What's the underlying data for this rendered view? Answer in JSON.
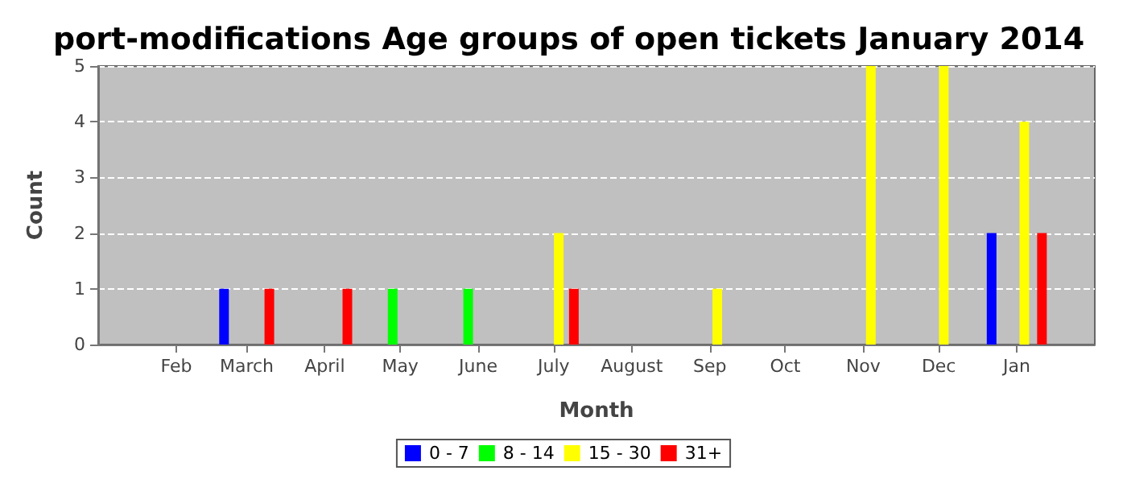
{
  "chart_data": {
    "type": "bar",
    "title": "port-modifications Age groups of open tickets January 2014",
    "xlabel": "Month",
    "ylabel": "Count",
    "xlim": [
      "2013-01-01",
      "2014-02-01"
    ],
    "xticks": [
      {
        "value": "2013-02-01",
        "label": "Feb"
      },
      {
        "value": "2013-03-01",
        "label": "March"
      },
      {
        "value": "2013-04-01",
        "label": "April"
      },
      {
        "value": "2013-05-01",
        "label": "May"
      },
      {
        "value": "2013-06-01",
        "label": "June"
      },
      {
        "value": "2013-07-01",
        "label": "July"
      },
      {
        "value": "2013-08-01",
        "label": "August"
      },
      {
        "value": "2013-09-01",
        "label": "Sep"
      },
      {
        "value": "2013-10-01",
        "label": "Oct"
      },
      {
        "value": "2013-11-01",
        "label": "Nov"
      },
      {
        "value": "2013-12-01",
        "label": "Dec"
      },
      {
        "value": "2014-01-01",
        "label": "Jan"
      }
    ],
    "ylim": [
      0,
      5
    ],
    "yticks": [
      0,
      1,
      2,
      3,
      4,
      5
    ],
    "grid": "y",
    "legend": "bottom",
    "series": [
      {
        "name": "0 - 7",
        "color": "#0000ff",
        "x": [
          "2013-02-20",
          "2013-12-22"
        ],
        "values": [
          1,
          2
        ]
      },
      {
        "name": "8 - 14",
        "color": "#00ff00",
        "x": [
          "2013-04-28",
          "2013-05-28"
        ],
        "values": [
          1,
          1
        ]
      },
      {
        "name": "15 - 30",
        "color": "#ffff00",
        "x": [
          "2013-07-03",
          "2013-09-04",
          "2013-11-04",
          "2013-12-03",
          "2014-01-04"
        ],
        "values": [
          2,
          1,
          5,
          5,
          4
        ]
      },
      {
        "name": "31+",
        "color": "#ff0000",
        "x": [
          "2013-03-10",
          "2013-04-10",
          "2013-07-09",
          "2014-01-11"
        ],
        "values": [
          1,
          1,
          1,
          2
        ]
      }
    ]
  }
}
